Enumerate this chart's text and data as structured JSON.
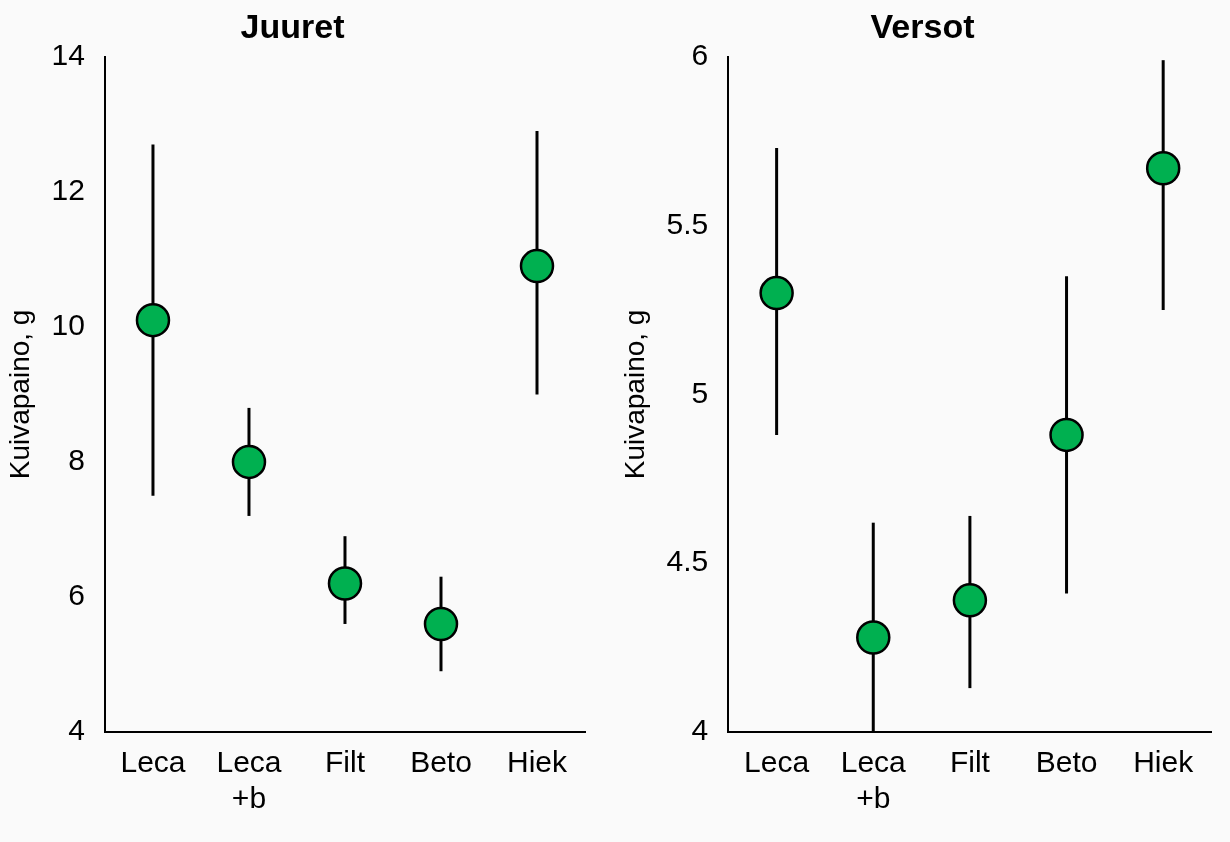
{
  "chart_data": [
    {
      "type": "scatter",
      "title": "Juuret",
      "ylabel": "Kuivapaino, g",
      "categories": [
        "Leca",
        "Leca +b",
        "Filt",
        "Beto",
        "Hiek"
      ],
      "marker": "circle",
      "ylim": [
        4,
        14
      ],
      "yticks": [
        4,
        6,
        8,
        10,
        12,
        14
      ],
      "series": [
        {
          "color": "#00b050",
          "values": [
            10.1,
            8.0,
            6.2,
            5.6,
            10.9
          ],
          "errors": [
            [
              7.5,
              12.7
            ],
            [
              7.2,
              8.8
            ],
            [
              5.6,
              6.9
            ],
            [
              4.9,
              6.3
            ],
            [
              9.0,
              12.9
            ]
          ]
        }
      ]
    },
    {
      "type": "scatter",
      "title": "Versot",
      "ylabel": "Kuivapaino, g",
      "categories": [
        "Leca",
        "Leca +b",
        "Filt",
        "Beto",
        "Hiek"
      ],
      "marker": "circle",
      "ylim": [
        4,
        6
      ],
      "yticks": [
        4,
        4.5,
        5,
        5.5,
        6
      ],
      "series": [
        {
          "color": "#00b050",
          "values": [
            5.3,
            4.28,
            4.39,
            4.88,
            5.67
          ],
          "errors": [
            [
              4.88,
              5.73
            ],
            [
              4.0,
              4.62
            ],
            [
              4.13,
              4.64
            ],
            [
              4.41,
              5.35
            ],
            [
              5.25,
              5.99
            ]
          ]
        }
      ]
    }
  ]
}
